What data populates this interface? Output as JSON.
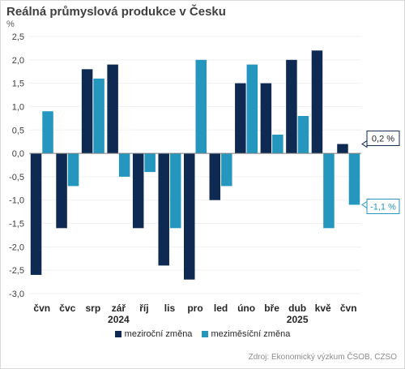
{
  "chart_data": {
    "type": "bar",
    "title": "Reálná průmyslová produkce v Česku",
    "ylabel": "%",
    "ylim": [
      -3.0,
      2.5
    ],
    "yticks": [
      "2,5",
      "2,0",
      "1,5",
      "1,0",
      "0,5",
      "0,0",
      "-0,5",
      "-1,0",
      "-1,5",
      "-2,0",
      "-2,5",
      "-3,0"
    ],
    "categories": [
      "čvn",
      "čvc",
      "srp",
      "zář",
      "říj",
      "lis",
      "pro",
      "led",
      "úno",
      "bře",
      "dub",
      "kvě",
      "čvn"
    ],
    "year_labels": [
      {
        "after_index": 3,
        "label": "2024"
      },
      {
        "after_index": 10,
        "label": "2025"
      }
    ],
    "series": [
      {
        "name": "meziroční změna",
        "color": "#0e2a52",
        "values": [
          -2.6,
          -1.6,
          1.8,
          1.9,
          -1.6,
          -2.4,
          -2.7,
          -1.0,
          1.5,
          1.5,
          2.0,
          2.2,
          0.2
        ]
      },
      {
        "name": "meziměsíční změna",
        "color": "#2596be",
        "values": [
          0.9,
          -0.7,
          1.6,
          -0.5,
          -0.4,
          -1.6,
          2.0,
          -0.7,
          1.9,
          0.4,
          0.8,
          -1.6,
          -1.1
        ]
      }
    ],
    "annotations": [
      {
        "text": "0,2 %",
        "series": 0,
        "index": 12,
        "color": "#0e2a52"
      },
      {
        "text": "-1,1 %",
        "series": 1,
        "index": 12,
        "color": "#2596be"
      }
    ],
    "grid": true,
    "legend_position": "bottom"
  },
  "source": "Zdroj: Ekonomický výzkum ČSOB, CZSO"
}
